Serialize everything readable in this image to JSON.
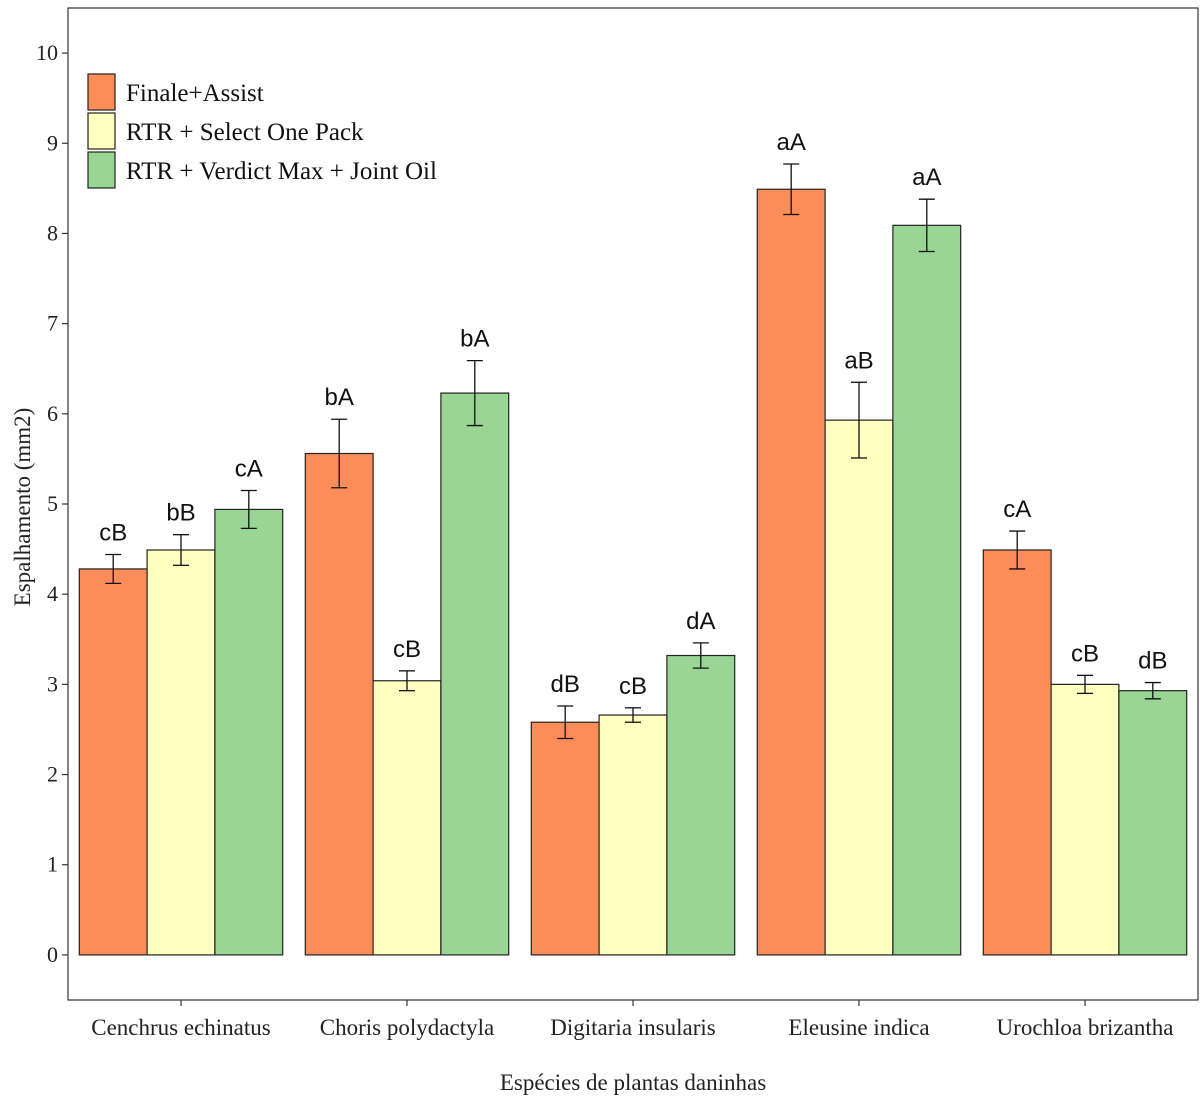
{
  "chart_data": {
    "type": "bar",
    "title": "",
    "xlabel": "Espécies de plantas daninhas",
    "ylabel": "Espalhamento (mm2)",
    "ylim": [
      -0.5,
      10.5
    ],
    "yticks": [
      0,
      1,
      2,
      3,
      4,
      5,
      6,
      7,
      8,
      9,
      10
    ],
    "grid": false,
    "legend_position": "top-left",
    "categories": [
      "Cenchrus echinatus",
      "Choris polydactyla",
      "Digitaria insularis",
      "Eleusine indica",
      "Urochloa brizantha"
    ],
    "series": [
      {
        "name": "Finale+Assist",
        "color": "#FC8D59",
        "values": [
          4.28,
          5.56,
          2.58,
          8.49,
          4.49
        ],
        "errors": [
          0.16,
          0.38,
          0.18,
          0.28,
          0.21
        ],
        "labels": [
          "cB",
          "bA",
          "dB",
          "aA",
          "cA"
        ]
      },
      {
        "name": "RTR + Select One Pack",
        "color": "#FFFFBF",
        "values": [
          4.49,
          3.04,
          2.66,
          5.93,
          3.0
        ],
        "errors": [
          0.17,
          0.11,
          0.08,
          0.42,
          0.1
        ],
        "labels": [
          "bB",
          "cB",
          "cB",
          "aB",
          "cB"
        ]
      },
      {
        "name": "RTR + Verdict Max + Joint Oil",
        "color": "#99D594",
        "values": [
          4.94,
          6.23,
          3.32,
          8.09,
          2.93
        ],
        "errors": [
          0.21,
          0.36,
          0.14,
          0.29,
          0.09
        ],
        "labels": [
          "cA",
          "bA",
          "dA",
          "aA",
          "dB"
        ]
      }
    ]
  }
}
